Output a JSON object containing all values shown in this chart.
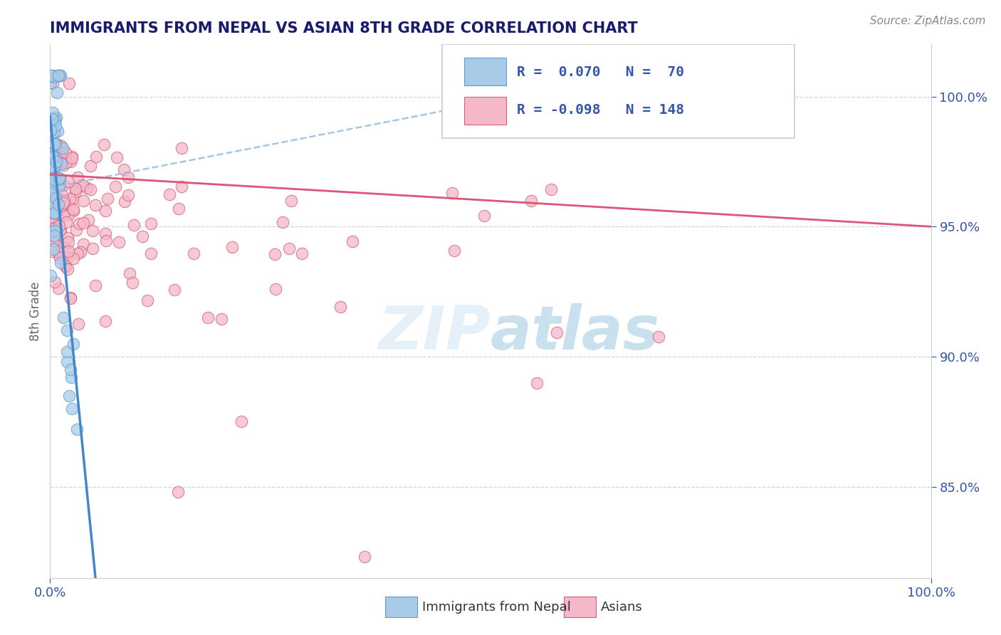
{
  "title": "IMMIGRANTS FROM NEPAL VS ASIAN 8TH GRADE CORRELATION CHART",
  "source_text": "Source: ZipAtlas.com",
  "ylabel": "8th Grade",
  "y_ticks": [
    85.0,
    90.0,
    95.0,
    100.0
  ],
  "y_tick_labels": [
    "85.0%",
    "90.0%",
    "95.0%",
    "100.0%"
  ],
  "x_range": [
    0.0,
    1.0
  ],
  "y_range": [
    81.5,
    102.0
  ],
  "nepal_color": "#a8cce8",
  "nepal_edge": "#6699cc",
  "asian_color": "#f4b8c8",
  "asian_edge": "#d4607a",
  "nepal_line_color": "#4488cc",
  "asian_line_color": "#dd5577",
  "dashed_line_color": "#99bbdd",
  "watermark_color": "#c8dff0",
  "title_color": "#1a1a6e",
  "axis_color": "#3355aa",
  "legend_r1": "R =  0.070   N =  70",
  "legend_r2": "R = -0.098   N = 148",
  "bottom_label1": "Immigrants from Nepal",
  "bottom_label2": "Asians"
}
